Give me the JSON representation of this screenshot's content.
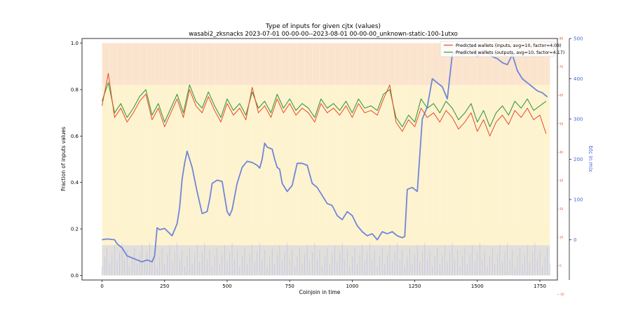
{
  "chart_data": {
    "type": "line",
    "title": "Type of inputs for given cjtx (values)",
    "subtitle": "wasabi2_zksnacks 2023-07-01 00-00-00--2023-08-01 00-00-00_unknown-static-100-1utxo",
    "xlabel": "Coinjoin in time",
    "ylabel": "Fraction of inputs values",
    "ylabel_right": "btc in mix",
    "xlim": [
      -80,
      1820
    ],
    "ylim": [
      -0.02,
      1.02
    ],
    "ylim_right_outer": [
      -100,
      500
    ],
    "ylim_right_inner": [
      -5,
      80
    ],
    "x_ticks": [
      0,
      250,
      500,
      750,
      1000,
      1250,
      1500,
      1750
    ],
    "y_ticks": [
      0.0,
      0.2,
      0.4,
      0.6,
      0.8,
      1.0
    ],
    "y_tick_labels": [
      "0.0",
      "0.2",
      "0.4",
      "0.6",
      "0.8",
      "1.0"
    ],
    "right_outer_ticks": [
      0,
      100,
      200,
      300,
      400,
      500
    ],
    "right_inner_ticks": [
      -10,
      0,
      10,
      20,
      30,
      40,
      50,
      60,
      70,
      80
    ],
    "grid": false,
    "legend_position": "top-right",
    "colors": {
      "inputs": "#e8482b",
      "outputs": "#3a9a3a",
      "btc": "#6f86d9",
      "right_inner_axis": "#e8482b",
      "band_yellow": "#fde9a8",
      "band_pink": "#f7c8c8",
      "band_blue": "#aebbf2"
    },
    "series": [
      {
        "name": "Predicted wallets (inputs, avg=10, factor=4.08)",
        "axis": "left",
        "x": [
          0,
          25,
          50,
          75,
          100,
          125,
          150,
          175,
          200,
          225,
          250,
          275,
          300,
          325,
          350,
          375,
          400,
          425,
          450,
          475,
          500,
          525,
          550,
          575,
          600,
          625,
          650,
          675,
          700,
          725,
          750,
          775,
          800,
          825,
          850,
          875,
          900,
          925,
          950,
          975,
          1000,
          1025,
          1050,
          1075,
          1100,
          1125,
          1150,
          1175,
          1200,
          1225,
          1250,
          1275,
          1300,
          1325,
          1350,
          1375,
          1400,
          1425,
          1450,
          1475,
          1500,
          1525,
          1550,
          1575,
          1600,
          1625,
          1650,
          1675,
          1700,
          1725,
          1750,
          1775
        ],
        "y": [
          0.73,
          0.87,
          0.68,
          0.72,
          0.66,
          0.7,
          0.75,
          0.78,
          0.67,
          0.72,
          0.64,
          0.7,
          0.76,
          0.68,
          0.8,
          0.73,
          0.7,
          0.77,
          0.71,
          0.66,
          0.74,
          0.69,
          0.72,
          0.67,
          0.81,
          0.7,
          0.73,
          0.68,
          0.76,
          0.7,
          0.74,
          0.69,
          0.72,
          0.7,
          0.66,
          0.74,
          0.7,
          0.72,
          0.69,
          0.73,
          0.68,
          0.74,
          0.7,
          0.71,
          0.69,
          0.76,
          0.82,
          0.66,
          0.62,
          0.67,
          0.64,
          0.72,
          0.68,
          0.7,
          0.66,
          0.71,
          0.68,
          0.63,
          0.66,
          0.7,
          0.62,
          0.67,
          0.6,
          0.66,
          0.69,
          0.65,
          0.71,
          0.68,
          0.72,
          0.67,
          0.69,
          0.61
        ]
      },
      {
        "name": "Predicted wallets (outputs, avg=10, factor=4.17)",
        "axis": "left",
        "x": [
          0,
          25,
          50,
          75,
          100,
          125,
          150,
          175,
          200,
          225,
          250,
          275,
          300,
          325,
          350,
          375,
          400,
          425,
          450,
          475,
          500,
          525,
          550,
          575,
          600,
          625,
          650,
          675,
          700,
          725,
          750,
          775,
          800,
          825,
          850,
          875,
          900,
          925,
          950,
          975,
          1000,
          1025,
          1050,
          1075,
          1100,
          1125,
          1150,
          1175,
          1200,
          1225,
          1250,
          1275,
          1300,
          1325,
          1350,
          1375,
          1400,
          1425,
          1450,
          1475,
          1500,
          1525,
          1550,
          1575,
          1600,
          1625,
          1650,
          1675,
          1700,
          1725,
          1750,
          1775
        ],
        "y": [
          0.75,
          0.83,
          0.7,
          0.74,
          0.68,
          0.72,
          0.77,
          0.8,
          0.69,
          0.74,
          0.66,
          0.72,
          0.78,
          0.7,
          0.82,
          0.75,
          0.72,
          0.79,
          0.73,
          0.68,
          0.76,
          0.71,
          0.74,
          0.69,
          0.79,
          0.72,
          0.75,
          0.7,
          0.78,
          0.72,
          0.76,
          0.71,
          0.74,
          0.72,
          0.68,
          0.76,
          0.72,
          0.74,
          0.71,
          0.75,
          0.7,
          0.76,
          0.72,
          0.73,
          0.71,
          0.78,
          0.8,
          0.68,
          0.64,
          0.69,
          0.66,
          0.76,
          0.72,
          0.74,
          0.7,
          0.75,
          0.72,
          0.67,
          0.7,
          0.74,
          0.66,
          0.71,
          0.64,
          0.7,
          0.73,
          0.69,
          0.75,
          0.72,
          0.76,
          0.71,
          0.73,
          0.75
        ]
      },
      {
        "name": "btc in mix",
        "axis": "right",
        "x": [
          0,
          20,
          50,
          60,
          80,
          100,
          120,
          140,
          160,
          180,
          200,
          210,
          220,
          230,
          250,
          280,
          300,
          310,
          320,
          330,
          340,
          360,
          380,
          400,
          420,
          430,
          440,
          460,
          480,
          500,
          510,
          520,
          540,
          560,
          580,
          600,
          620,
          630,
          640,
          650,
          660,
          680,
          690,
          700,
          710,
          720,
          740,
          760,
          780,
          800,
          820,
          840,
          860,
          880,
          900,
          920,
          940,
          960,
          980,
          1000,
          1020,
          1040,
          1060,
          1080,
          1100,
          1120,
          1140,
          1160,
          1180,
          1200,
          1210,
          1220,
          1240,
          1260,
          1280,
          1300,
          1320,
          1340,
          1360,
          1380,
          1400,
          1420,
          1440,
          1460,
          1480,
          1500,
          1520,
          1540,
          1560,
          1580,
          1600,
          1620,
          1640,
          1660,
          1680,
          1700,
          1720,
          1740,
          1760,
          1780
        ],
        "y": [
          0,
          2,
          0,
          -10,
          -20,
          -40,
          -45,
          -50,
          -55,
          -50,
          -55,
          -40,
          30,
          25,
          28,
          10,
          40,
          80,
          150,
          190,
          220,
          180,
          120,
          65,
          70,
          100,
          140,
          148,
          145,
          70,
          60,
          75,
          140,
          180,
          195,
          192,
          185,
          178,
          200,
          240,
          230,
          225,
          200,
          180,
          175,
          140,
          120,
          135,
          190,
          190,
          185,
          140,
          130,
          110,
          90,
          85,
          60,
          50,
          70,
          60,
          35,
          20,
          10,
          15,
          0,
          20,
          15,
          20,
          10,
          5,
          8,
          125,
          130,
          120,
          300,
          330,
          400,
          390,
          380,
          350,
          460,
          470,
          460,
          475,
          480,
          455,
          470,
          465,
          455,
          450,
          440,
          435,
          460,
          420,
          400,
          390,
          380,
          370,
          365,
          355
        ]
      }
    ]
  }
}
